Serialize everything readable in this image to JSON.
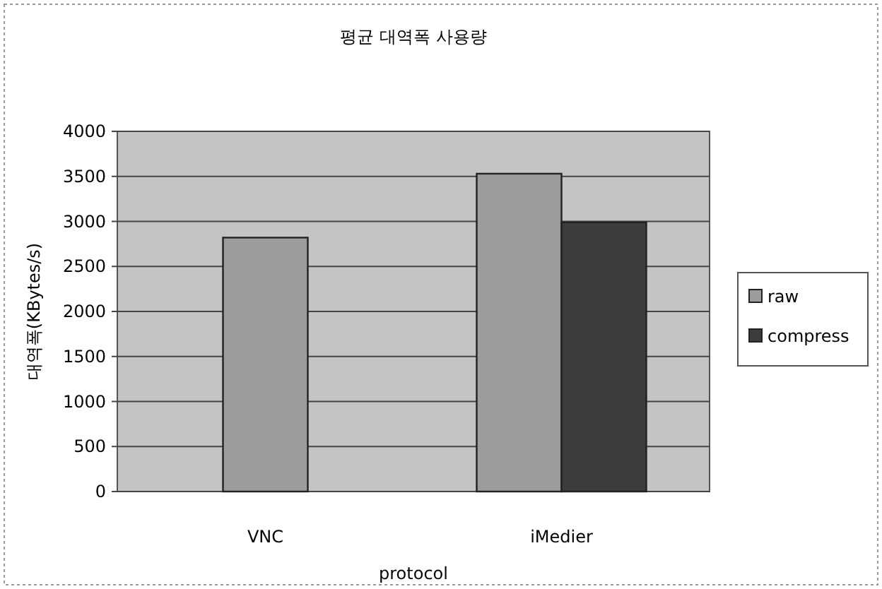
{
  "chart_data": {
    "type": "bar",
    "title": "평균 대역폭 사용량",
    "xlabel": "protocol",
    "ylabel": "대역폭(KBytes/s)",
    "categories": [
      "VNC",
      "iMedier"
    ],
    "series": [
      {
        "name": "raw",
        "color": "#9c9c9c",
        "values": [
          2820,
          3530
        ]
      },
      {
        "name": "compress",
        "color": "#3c3c3c",
        "values": [
          null,
          2990
        ]
      }
    ],
    "ylim": [
      0,
      4000
    ],
    "yticks": [
      0,
      500,
      1000,
      1500,
      2000,
      2500,
      3000,
      3500,
      4000
    ],
    "grid": "y",
    "legend": "right"
  }
}
